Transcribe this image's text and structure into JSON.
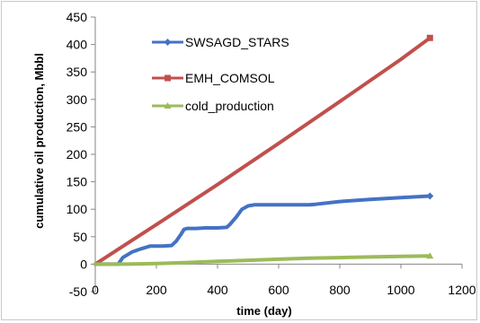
{
  "chart_data": {
    "type": "line",
    "title": "",
    "xlabel": "time (day)",
    "ylabel": "cumulative oil production, Mbbl",
    "xlim": [
      0,
      1200
    ],
    "ylim": [
      -50,
      450
    ],
    "xticks": [
      "0",
      "200",
      "400",
      "600",
      "800",
      "1000",
      "1200"
    ],
    "yticks": [
      "450",
      "400",
      "350",
      "300",
      "250",
      "200",
      "150",
      "100",
      "50",
      "0",
      "-50"
    ],
    "grid": false,
    "legend_position": "top-center",
    "series": [
      {
        "name": "SWSAGD_STARS",
        "color": "#4472c4",
        "marker": "diamond",
        "x": [
          0,
          75,
          90,
          120,
          150,
          180,
          200,
          220,
          250,
          265,
          280,
          290,
          300,
          330,
          360,
          400,
          430,
          440,
          460,
          480,
          500,
          520,
          560,
          600,
          700,
          720,
          800,
          900,
          1000,
          1095
        ],
        "y": [
          0,
          0,
          12,
          22,
          28,
          33,
          33,
          33,
          34,
          42,
          54,
          63,
          65,
          65,
          66,
          66,
          67,
          72,
          85,
          100,
          106,
          108,
          108,
          108,
          108,
          109,
          114,
          118,
          121,
          124
        ]
      },
      {
        "name": "EMH_COMSOL",
        "color": "#c0504d",
        "marker": "square",
        "x": [
          0,
          200,
          400,
          600,
          800,
          1000,
          1095
        ],
        "y": [
          0,
          72,
          145,
          220,
          296,
          373,
          412
        ]
      },
      {
        "name": "cold_production",
        "color": "#9bbb59",
        "marker": "triangle",
        "x": [
          0,
          100,
          200,
          300,
          400,
          500,
          600,
          700,
          800,
          900,
          1000,
          1095
        ],
        "y": [
          0,
          0,
          1,
          3,
          5,
          7,
          9,
          11,
          12,
          13,
          14,
          15
        ]
      }
    ]
  }
}
